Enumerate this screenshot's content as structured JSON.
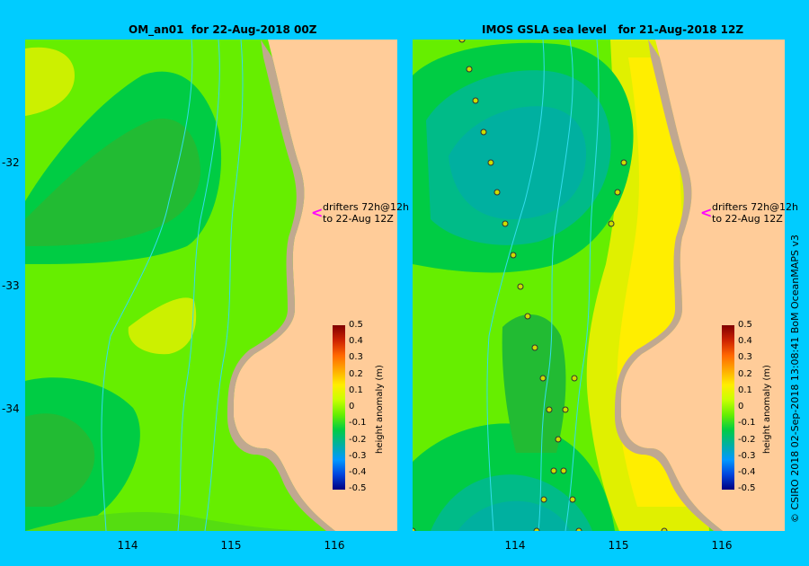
{
  "left_panel": {
    "title": "OM_an01  for 22-Aug-2018 00Z"
  },
  "right_panel": {
    "title": "IMOS GSLA sea level   for 21-Aug-2018 12Z"
  },
  "y_ticks": [
    "-32",
    "-33",
    "-34"
  ],
  "x_ticks": [
    "114",
    "115",
    "116"
  ],
  "drifters_note": "drifters 72h@12h\nto 22-Aug 12Z",
  "colorbar": {
    "label": "height anomaly (m)",
    "ticks": [
      "0.5",
      "0.4",
      "0.3",
      "0.2",
      "0.1",
      "0",
      "-0.1",
      "-0.2",
      "-0.3",
      "-0.4",
      "-0.5"
    ]
  },
  "credit": "© CSIRO 2018   02-Sep-2018 13:08:41 BoM OceanMAPS v3",
  "colors": {
    "background": "#00ccff",
    "land": "#ffcc99",
    "shelf": "#c0a890",
    "drifter_arrow": "#ff00ff"
  }
}
